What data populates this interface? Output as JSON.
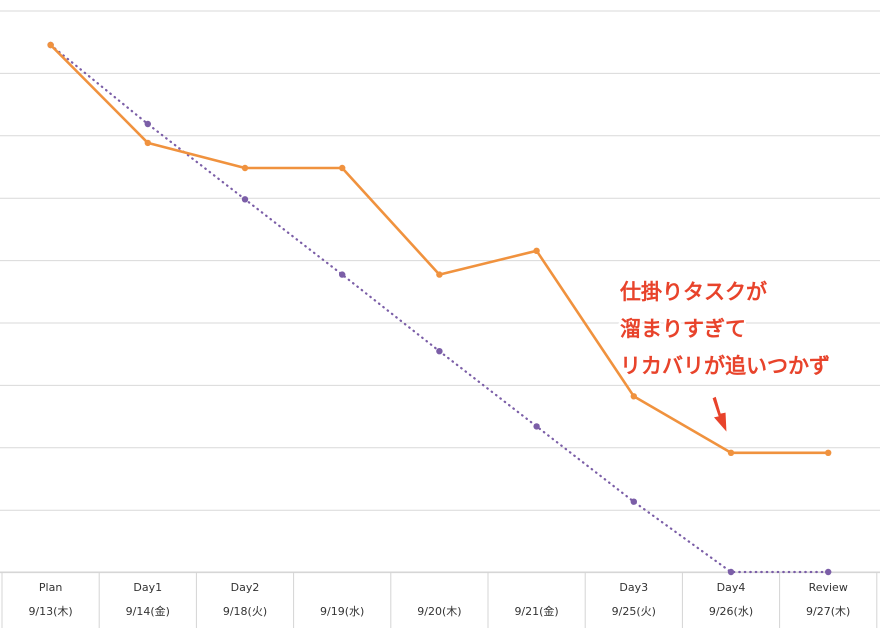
{
  "chart_data": {
    "type": "line",
    "categories": [
      {
        "label": "Plan",
        "date": "9/13(木)"
      },
      {
        "label": "Day1",
        "date": "9/14(金)"
      },
      {
        "label": "Day2",
        "date": "9/18(火)"
      },
      {
        "label": "",
        "date": "9/19(水)"
      },
      {
        "label": "",
        "date": "9/20(木)"
      },
      {
        "label": "",
        "date": "9/21(金)"
      },
      {
        "label": "Day3",
        "date": "9/25(火)"
      },
      {
        "label": "Day4",
        "date": "9/26(水)"
      },
      {
        "label": "Review",
        "date": "9/27(木)"
      }
    ],
    "ylim": [
      0,
      42
    ],
    "grid": true,
    "series": [
      {
        "key": "actual",
        "color": "#f0923e",
        "style": "solid",
        "values": [
          42,
          34.2,
          32.2,
          32.2,
          23.7,
          25.6,
          14.0,
          9.5,
          9.5
        ]
      },
      {
        "key": "ideal",
        "color": "#7b5ea7",
        "style": "dotted",
        "values": [
          42,
          35.7,
          29.7,
          23.7,
          17.6,
          11.6,
          5.6,
          0,
          0
        ]
      }
    ],
    "annotation": {
      "lines": [
        "仕掛りタスクが",
        "溜まりすぎて",
        "リカバリが追いつかず"
      ],
      "color": "#e8432b"
    }
  }
}
